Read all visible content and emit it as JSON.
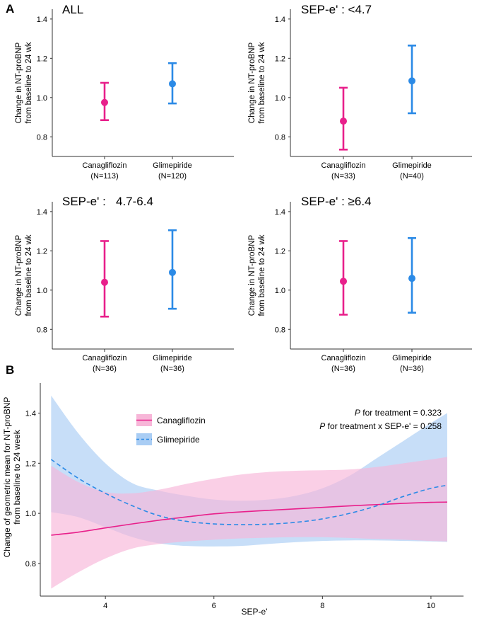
{
  "panel_labels": {
    "a": "A",
    "b": "B"
  },
  "chart_data": [
    {
      "type": "errorbar",
      "panel": "A",
      "title": "ALL",
      "ylabel_line1": "Change in NT-proBNP",
      "ylabel_line2": "from baseline to 24 wk",
      "ylim": [
        0.7,
        1.45
      ],
      "yticks": [
        "0.8",
        "1.0",
        "1.2",
        "1.4"
      ],
      "categories": [
        {
          "name": "Canagliflozin",
          "n": "(N=113)",
          "value": 0.975,
          "lower": 0.885,
          "upper": 1.075,
          "color": "#e8208b"
        },
        {
          "name": "Glimepiride",
          "n": "(N=120)",
          "value": 1.07,
          "lower": 0.97,
          "upper": 1.175,
          "color": "#2b8ae6"
        }
      ]
    },
    {
      "type": "errorbar",
      "panel": "A",
      "title": "SEP-e' : <4.7",
      "ylabel_line1": "Change in NT-proBNP",
      "ylabel_line2": "from baseline to 24 wk",
      "ylim": [
        0.7,
        1.45
      ],
      "yticks": [
        "0.8",
        "1.0",
        "1.2",
        "1.4"
      ],
      "categories": [
        {
          "name": "Canagliflozin",
          "n": "(N=33)",
          "value": 0.88,
          "lower": 0.735,
          "upper": 1.05,
          "color": "#e8208b"
        },
        {
          "name": "Glimepiride",
          "n": "(N=40)",
          "value": 1.085,
          "lower": 0.92,
          "upper": 1.265,
          "color": "#2b8ae6"
        }
      ]
    },
    {
      "type": "errorbar",
      "panel": "A",
      "title": "SEP-e' :   4.7-6.4",
      "ylabel_line1": "Change in NT-proBNP",
      "ylabel_line2": "from baseline to 24 wk",
      "ylim": [
        0.7,
        1.45
      ],
      "yticks": [
        "0.8",
        "1.0",
        "1.2",
        "1.4"
      ],
      "categories": [
        {
          "name": "Canagliflozin",
          "n": "(N=36)",
          "value": 1.04,
          "lower": 0.865,
          "upper": 1.25,
          "color": "#e8208b"
        },
        {
          "name": "Glimepiride",
          "n": "(N=36)",
          "value": 1.09,
          "lower": 0.905,
          "upper": 1.305,
          "color": "#2b8ae6"
        }
      ]
    },
    {
      "type": "errorbar",
      "panel": "A",
      "title": "SEP-e' : ≥6.4",
      "ylabel_line1": "Change in NT-proBNP",
      "ylabel_line2": "from baseline to 24 wk",
      "ylim": [
        0.7,
        1.45
      ],
      "yticks": [
        "0.8",
        "1.0",
        "1.2",
        "1.4"
      ],
      "categories": [
        {
          "name": "Canagliflozin",
          "n": "(N=36)",
          "value": 1.045,
          "lower": 0.875,
          "upper": 1.25,
          "color": "#e8208b"
        },
        {
          "name": "Glimepiride",
          "n": "(N=36)",
          "value": 1.06,
          "lower": 0.885,
          "upper": 1.265,
          "color": "#2b8ae6"
        }
      ]
    },
    {
      "type": "line",
      "panel": "B",
      "xlabel": "SEP-e'",
      "ylabel_line1": "Change of geometric mean for NT-proBNP",
      "ylabel_line2": "from baseline to 24 week",
      "xlim": [
        2.8,
        10.6
      ],
      "ylim": [
        0.67,
        1.52
      ],
      "xticks": [
        "4",
        "6",
        "8",
        "10"
      ],
      "yticks": [
        "0.8",
        "1.0",
        "1.2",
        "1.4"
      ],
      "annotation_line1": {
        "italic": "P",
        "text": " for treatment = 0.323"
      },
      "annotation_line2": {
        "italic": "P",
        "text": " for treatment x SEP-e' = 0.258"
      },
      "series": [
        {
          "name": "Canagliflozin",
          "style": "solid",
          "color": "#e8208b",
          "band_color": "#f7b6d8",
          "x": [
            3.0,
            3.5,
            4.0,
            4.5,
            5.0,
            5.5,
            6.0,
            6.5,
            7.0,
            7.5,
            8.0,
            8.5,
            9.0,
            9.5,
            10.0,
            10.3
          ],
          "y": [
            0.913,
            0.925,
            0.942,
            0.958,
            0.973,
            0.986,
            0.998,
            1.006,
            1.012,
            1.018,
            1.024,
            1.03,
            1.035,
            1.04,
            1.044,
            1.045
          ],
          "lower": [
            0.7,
            0.765,
            0.82,
            0.86,
            0.878,
            0.888,
            0.895,
            0.9,
            0.903,
            0.905,
            0.905,
            0.902,
            0.898,
            0.895,
            0.89,
            0.888
          ],
          "upper": [
            1.19,
            1.125,
            1.085,
            1.08,
            1.095,
            1.118,
            1.138,
            1.155,
            1.165,
            1.17,
            1.172,
            1.175,
            1.185,
            1.2,
            1.215,
            1.225
          ]
        },
        {
          "name": "Glimepiride",
          "style": "dashed",
          "color": "#2b8ae6",
          "band_color": "#a9cdf4",
          "x": [
            3.0,
            3.5,
            4.0,
            4.5,
            5.0,
            5.5,
            6.0,
            6.5,
            7.0,
            7.5,
            8.0,
            8.5,
            9.0,
            9.5,
            10.0,
            10.3
          ],
          "y": [
            1.215,
            1.14,
            1.08,
            1.03,
            0.99,
            0.968,
            0.958,
            0.955,
            0.957,
            0.964,
            0.978,
            1.0,
            1.03,
            1.068,
            1.1,
            1.112
          ],
          "lower": [
            1.005,
            0.985,
            0.945,
            0.905,
            0.88,
            0.87,
            0.868,
            0.87,
            0.878,
            0.885,
            0.89,
            0.892,
            0.892,
            0.89,
            0.888,
            0.886
          ],
          "upper": [
            1.47,
            1.32,
            1.2,
            1.12,
            1.09,
            1.07,
            1.055,
            1.05,
            1.055,
            1.07,
            1.1,
            1.15,
            1.22,
            1.29,
            1.36,
            1.4
          ]
        }
      ]
    }
  ]
}
